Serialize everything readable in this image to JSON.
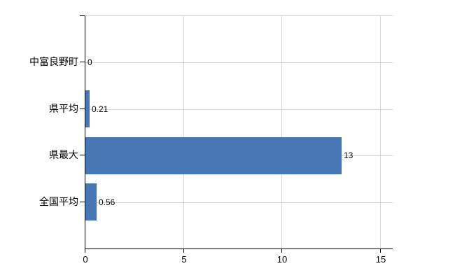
{
  "chart_data": {
    "type": "bar",
    "orientation": "horizontal",
    "title": "",
    "xlabel": "",
    "ylabel": "",
    "categories": [
      "中富良野町",
      "県平均",
      "県最大",
      "全国平均"
    ],
    "values": [
      0,
      0.21,
      13,
      0.56
    ],
    "value_labels": [
      "0",
      "0.21",
      "13",
      "0.56"
    ],
    "x_ticks": [
      0,
      5,
      10,
      15
    ],
    "x_tick_labels": [
      "0",
      "5",
      "10",
      "15"
    ],
    "xlim": [
      0,
      15.6
    ],
    "grid": true,
    "legend_position": "none",
    "bar_color": "#4677b4",
    "grid_color": "#d6d6d6",
    "axis_color": "#000000",
    "text_color": "#000000",
    "background_color": "#ffffff"
  }
}
